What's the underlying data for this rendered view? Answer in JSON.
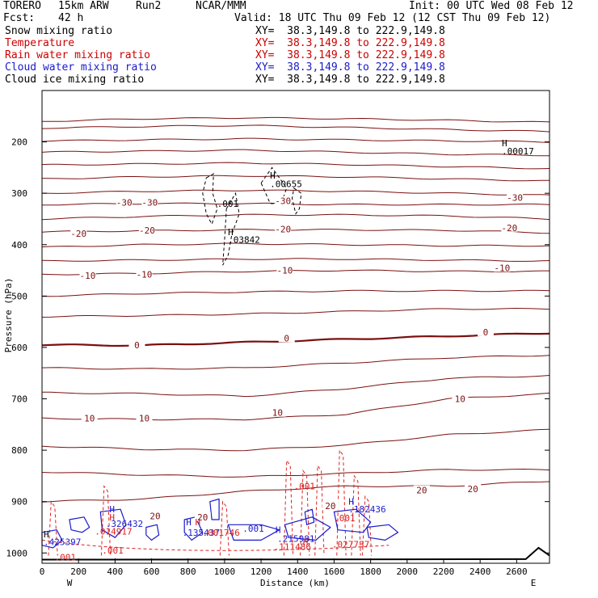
{
  "header": {
    "model": "TORERO",
    "resolution": "15km ARW",
    "run": "Run2",
    "org": "NCAR/MMM",
    "init": "Init: 00 UTC Wed 08 Feb 12",
    "fcst_label": "Fcst:",
    "fcst_value": "42 h",
    "valid": "Valid: 18 UTC Thu 09 Feb 12 (12 CST Thu 09 Feb 12)"
  },
  "fields": [
    {
      "name": "Snow mixing ratio",
      "xy": "XY=  38.3,149.8 to 222.9,149.8",
      "color": "#000000"
    },
    {
      "name": "Temperature",
      "xy": "XY=  38.3,149.8 to 222.9,149.8",
      "color": "#cc0000"
    },
    {
      "name": "Rain water mixing ratio",
      "xy": "XY=  38.3,149.8 to 222.9,149.8",
      "color": "#cc0000"
    },
    {
      "name": "Cloud water mixing ratio",
      "xy": "XY=  38.3,149.8 to 222.9,149.8",
      "color": "#1a1acc"
    },
    {
      "name": "Cloud ice mixing ratio",
      "xy": "XY=  38.3,149.8 to 222.9,149.8",
      "color": "#000000"
    }
  ],
  "chart_data": {
    "type": "contour cross-section",
    "xlabel": "Distance (km)",
    "ylabel": "Pressure (hPa)",
    "xlim": [
      0,
      2780
    ],
    "ylim": [
      1020,
      100
    ],
    "x_ticks": [
      0,
      200,
      400,
      600,
      800,
      1000,
      1200,
      1400,
      1600,
      1800,
      2000,
      2200,
      2400,
      2600
    ],
    "y_ticks": [
      200,
      300,
      400,
      500,
      600,
      700,
      800,
      900,
      1000
    ],
    "left_end": "W",
    "right_end": "E",
    "colors": {
      "isotherm": "#7a1010",
      "rain": "#dd2222",
      "cloud_water": "#1a1acc",
      "ice": "#000000",
      "ground": "#000000"
    },
    "isotherms": [
      {
        "pressure": [
          160,
          155,
          153,
          155,
          158,
          162
        ],
        "label": ""
      },
      {
        "pressure": [
          173,
          170,
          168,
          172,
          176,
          180
        ],
        "label": ""
      },
      {
        "pressure": [
          198,
          196,
          194,
          196,
          198,
          200
        ],
        "label": ""
      },
      {
        "pressure": [
          220,
          218,
          216,
          220,
          224,
          226
        ],
        "label": ""
      },
      {
        "pressure": [
          245,
          243,
          241,
          244,
          248,
          252
        ],
        "label": ""
      },
      {
        "pressure": [
          272,
          268,
          266,
          268,
          272,
          276
        ],
        "label": ""
      },
      {
        "pressure": [
          300,
          296,
          294,
          296,
          300,
          304
        ],
        "label": ""
      },
      {
        "pressure": [
          322,
          320,
          320,
          322,
          322,
          322
        ],
        "label": "-30"
      },
      {
        "pressure": [
          350,
          345,
          342,
          342,
          344,
          350
        ],
        "label": ""
      },
      {
        "pressure": [
          375,
          373,
          371,
          371,
          372,
          377
        ],
        "label": "-20"
      },
      {
        "pressure": [
          405,
          400,
          398,
          400,
          402,
          402
        ],
        "label": ""
      },
      {
        "pressure": [
          432,
          430,
          428,
          428,
          430,
          432
        ],
        "label": ""
      },
      {
        "pressure": [
          458,
          456,
          452,
          450,
          452,
          452
        ],
        "label": "-10"
      },
      {
        "pressure": [
          500,
          495,
          492,
          490,
          490,
          490
        ],
        "label": ""
      },
      {
        "pressure": [
          540,
          538,
          535,
          530,
          525,
          525
        ],
        "label": ""
      },
      {
        "pressure": [
          595,
          596,
          590,
          584,
          578,
          572
        ],
        "label": "0"
      },
      {
        "pressure": [
          640,
          642,
          640,
          630,
          620,
          615
        ],
        "label": ""
      },
      {
        "pressure": [
          688,
          690,
          695,
          680,
          660,
          655
        ],
        "label": ""
      },
      {
        "pressure": [
          738,
          740,
          740,
          730,
          700,
          690
        ],
        "label": "10"
      },
      {
        "pressure": [
          792,
          798,
          800,
          790,
          770,
          760
        ],
        "label": ""
      },
      {
        "pressure": [
          842,
          848,
          852,
          845,
          838,
          838
        ],
        "label": ""
      },
      {
        "pressure": [
          900,
          895,
          880,
          870,
          870,
          860
        ],
        "label": "20"
      }
    ],
    "temperature_labels": [
      {
        "text": "-30",
        "x": 450,
        "p": 318
      },
      {
        "text": "-30",
        "x": 590,
        "p": 318
      },
      {
        "text": "-30",
        "x": 1320,
        "p": 315
      },
      {
        "text": "-30",
        "x": 2590,
        "p": 308
      },
      {
        "text": "-20",
        "x": 200,
        "p": 378
      },
      {
        "text": "-20",
        "x": 575,
        "p": 372
      },
      {
        "text": "-20",
        "x": 1320,
        "p": 370
      },
      {
        "text": "-20",
        "x": 2560,
        "p": 367
      },
      {
        "text": "-10",
        "x": 250,
        "p": 460
      },
      {
        "text": "-10",
        "x": 560,
        "p": 458
      },
      {
        "text": "-10",
        "x": 1330,
        "p": 450
      },
      {
        "text": "-10",
        "x": 2520,
        "p": 445
      },
      {
        "text": "0",
        "x": 520,
        "p": 595
      },
      {
        "text": "0",
        "x": 1340,
        "p": 582
      },
      {
        "text": "0",
        "x": 2430,
        "p": 570
      },
      {
        "text": "10",
        "x": 260,
        "p": 738
      },
      {
        "text": "10",
        "x": 560,
        "p": 738
      },
      {
        "text": "10",
        "x": 1290,
        "p": 727
      },
      {
        "text": "10",
        "x": 2290,
        "p": 700
      },
      {
        "text": "20",
        "x": 620,
        "p": 928
      },
      {
        "text": "20",
        "x": 880,
        "p": 930
      },
      {
        "text": "20",
        "x": 1580,
        "p": 908
      },
      {
        "text": "20",
        "x": 2080,
        "p": 878
      },
      {
        "text": "20",
        "x": 2360,
        "p": 875
      }
    ],
    "annotations": [
      {
        "text": "H",
        "x": 2510,
        "p": 202,
        "color": "#000000"
      },
      {
        "text": ".00017",
        "x": 2510,
        "p": 218,
        "color": "#000000"
      },
      {
        "text": "H",
        "x": 1240,
        "p": 265,
        "color": "#000000"
      },
      {
        "text": ".00655",
        "x": 1240,
        "p": 282,
        "color": "#000000"
      },
      {
        "text": ".001",
        "x": 950,
        "p": 320,
        "color": "#000000"
      },
      {
        "text": "H",
        "x": 1010,
        "p": 375,
        "color": "#000000"
      },
      {
        "text": ".03842",
        "x": 1010,
        "p": 390,
        "color": "#000000"
      },
      {
        "text": ".001",
        "x": 1370,
        "p": 870,
        "color": "#dd2222"
      },
      {
        "text": "H",
        "x": 1670,
        "p": 900,
        "color": "#1a1acc"
      },
      {
        "text": ".182436",
        "x": 1670,
        "p": 915,
        "color": "#1a1acc"
      },
      {
        "text": ".001",
        "x": 1590,
        "p": 932,
        "color": "#dd2222"
      },
      {
        "text": "H",
        "x": 360,
        "p": 915,
        "color": "#1a1acc"
      },
      {
        "text": ".326432",
        "x": 340,
        "p": 943,
        "color": "#1a1acc"
      },
      {
        "text": ".014917",
        "x": 280,
        "p": 958,
        "color": "#dd2222"
      },
      {
        "text": "H",
        "x": 360,
        "p": 930,
        "color": "#dd2222"
      },
      {
        "text": "H",
        "x": 780,
        "p": 940,
        "color": "#1a1acc"
      },
      {
        "text": "H",
        "x": 830,
        "p": 940,
        "color": "#dd2222"
      },
      {
        "text": ".135437",
        "x": 760,
        "p": 960,
        "color": "#1a1acc"
      },
      {
        "text": ".001746",
        "x": 870,
        "p": 960,
        "color": "#dd2222"
      },
      {
        "text": ".001",
        "x": 1090,
        "p": 952,
        "color": "#1a1acc"
      },
      {
        "text": "H",
        "x": 1270,
        "p": 955,
        "color": "#1a1acc"
      },
      {
        "text": "H",
        "x": 1420,
        "p": 978,
        "color": "#dd2222"
      },
      {
        "text": ".215981",
        "x": 1280,
        "p": 972,
        "color": "#1a1acc"
      },
      {
        "text": ".111486",
        "x": 1260,
        "p": 988,
        "color": "#dd2222"
      },
      {
        "text": ".027737",
        "x": 1580,
        "p": 983,
        "color": "#dd2222"
      },
      {
        "text": ".001",
        "x": 320,
        "p": 995,
        "color": "#dd2222"
      },
      {
        "text": "H",
        "x": 0,
        "p": 963,
        "color": "#000000"
      },
      {
        "text": ".425397",
        "x": 0,
        "p": 978,
        "color": "#1a1acc"
      },
      {
        "text": ".001",
        "x": 60,
        "p": 1008,
        "color": "#dd2222"
      }
    ]
  }
}
